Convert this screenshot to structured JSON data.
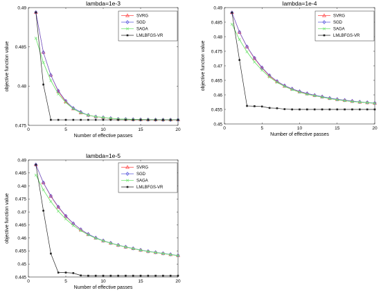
{
  "colors": {
    "SVRG": "#ff4040",
    "SGD": "#5a5adc",
    "SAGA": "#6ee36e",
    "LMLBFGS-VR": "#222222"
  },
  "chart_data": [
    {
      "type": "line",
      "title": "lambda=1e-3",
      "xlabel": "Number of effective passes",
      "ylabel": "objective function value",
      "xlim": [
        0,
        20
      ],
      "ylim": [
        0.475,
        0.49
      ],
      "xticks": [
        0,
        5,
        10,
        15,
        20
      ],
      "yticks": [
        0.475,
        0.48,
        0.485,
        0.49
      ],
      "ytick_labels": [
        "0.475",
        "0.48",
        "0.485",
        "0.49"
      ],
      "legend_position": "top-right",
      "series": [
        {
          "name": "SVRG",
          "marker": "triangle",
          "x": [
            1,
            2,
            3,
            4,
            5,
            6,
            7,
            8,
            9,
            10,
            11,
            12,
            13,
            14,
            15,
            16,
            17,
            18,
            19,
            20
          ],
          "values": [
            0.4894,
            0.4843,
            0.4814,
            0.4793,
            0.478,
            0.4771,
            0.4766,
            0.4763,
            0.4761,
            0.476,
            0.4759,
            0.4758,
            0.47578,
            0.47575,
            0.47573,
            0.47572,
            0.47571,
            0.4757,
            0.4757,
            0.4757
          ]
        },
        {
          "name": "SGD",
          "marker": "diamond",
          "x": [
            1,
            2,
            3,
            4,
            5,
            6,
            7,
            8,
            9,
            10,
            11,
            12,
            13,
            14,
            15,
            16,
            17,
            18,
            19,
            20
          ],
          "values": [
            0.4894,
            0.4843,
            0.4814,
            0.4794,
            0.4781,
            0.4772,
            0.4767,
            0.4763,
            0.4761,
            0.476,
            0.4759,
            0.4758,
            0.47578,
            0.47575,
            0.47573,
            0.47572,
            0.47571,
            0.4757,
            0.4757,
            0.4757
          ]
        },
        {
          "name": "SAGA",
          "marker": "x",
          "x": [
            1,
            2,
            3,
            4,
            5,
            6,
            7,
            8,
            9,
            10,
            11,
            12,
            13,
            14,
            15,
            16,
            17,
            18,
            19,
            20
          ],
          "values": [
            0.4861,
            0.483,
            0.4807,
            0.479,
            0.4779,
            0.4771,
            0.4766,
            0.4763,
            0.4761,
            0.476,
            0.4759,
            0.4758,
            0.47578,
            0.47575,
            0.47573,
            0.47572,
            0.47571,
            0.4757,
            0.4757,
            0.4757
          ]
        },
        {
          "name": "LMLBFGS-VR",
          "marker": "square",
          "x": [
            1,
            2,
            3,
            4,
            5,
            6,
            7,
            8,
            9,
            10,
            11,
            12,
            13,
            14,
            15,
            16,
            17,
            18,
            19,
            20
          ],
          "values": [
            0.4894,
            0.4802,
            0.4757,
            0.4757,
            0.4757,
            0.4757,
            0.4757,
            0.4757,
            0.4757,
            0.4757,
            0.4757,
            0.4757,
            0.4757,
            0.4757,
            0.4757,
            0.4757,
            0.4757,
            0.4757,
            0.4757,
            0.4757
          ]
        }
      ]
    },
    {
      "type": "line",
      "title": "lambda=1e-4",
      "xlabel": "Number of effective passes",
      "ylabel": "objective function value",
      "xlim": [
        0,
        20
      ],
      "ylim": [
        0.45,
        0.49
      ],
      "xticks": [
        0,
        5,
        10,
        15,
        20
      ],
      "yticks": [
        0.45,
        0.455,
        0.46,
        0.465,
        0.47,
        0.475,
        0.48,
        0.485,
        0.49
      ],
      "ytick_labels": [
        "0.45",
        "0.455",
        "0.46",
        "0.465",
        "0.47",
        "0.475",
        "0.48",
        "0.485",
        "0.49"
      ],
      "legend_position": "top-right",
      "series": [
        {
          "name": "SVRG",
          "marker": "triangle",
          "x": [
            1,
            2,
            3,
            4,
            5,
            6,
            7,
            8,
            9,
            10,
            11,
            12,
            13,
            14,
            15,
            16,
            17,
            18,
            19,
            20
          ],
          "values": [
            0.4883,
            0.4815,
            0.4765,
            0.4725,
            0.4692,
            0.4665,
            0.4645,
            0.463,
            0.462,
            0.4611,
            0.4604,
            0.4598,
            0.4593,
            0.4588,
            0.4584,
            0.4581,
            0.4578,
            0.4575,
            0.4573,
            0.4571
          ]
        },
        {
          "name": "SGD",
          "marker": "diamond",
          "x": [
            1,
            2,
            3,
            4,
            5,
            6,
            7,
            8,
            9,
            10,
            11,
            12,
            13,
            14,
            15,
            16,
            17,
            18,
            19,
            20
          ],
          "values": [
            0.4883,
            0.4816,
            0.4766,
            0.4727,
            0.4694,
            0.4667,
            0.4647,
            0.4632,
            0.4621,
            0.4612,
            0.4605,
            0.4599,
            0.4594,
            0.4589,
            0.4585,
            0.4582,
            0.4579,
            0.4576,
            0.4574,
            0.4572
          ]
        },
        {
          "name": "SAGA",
          "marker": "x",
          "x": [
            1,
            2,
            3,
            4,
            5,
            6,
            7,
            8,
            9,
            10,
            11,
            12,
            13,
            14,
            15,
            16,
            17,
            18,
            19,
            20
          ],
          "values": [
            0.4843,
            0.479,
            0.4748,
            0.4713,
            0.4685,
            0.4661,
            0.4643,
            0.4629,
            0.4618,
            0.4609,
            0.4602,
            0.4597,
            0.4592,
            0.4587,
            0.4583,
            0.458,
            0.4577,
            0.4575,
            0.4573,
            0.4571
          ]
        },
        {
          "name": "LMLBFGS-VR",
          "marker": "square",
          "x": [
            1,
            2,
            3,
            4,
            5,
            6,
            7,
            8,
            9,
            10,
            11,
            12,
            13,
            14,
            15,
            16,
            17,
            18,
            19,
            20
          ],
          "values": [
            0.4883,
            0.472,
            0.4562,
            0.4561,
            0.456,
            0.4555,
            0.4554,
            0.4551,
            0.455,
            0.455,
            0.455,
            0.455,
            0.455,
            0.455,
            0.455,
            0.455,
            0.455,
            0.455,
            0.455,
            0.455
          ]
        }
      ]
    },
    {
      "type": "line",
      "title": "lambda=1e-5",
      "xlabel": "Number of effective passes",
      "ylabel": "objective function value",
      "xlim": [
        0,
        20
      ],
      "ylim": [
        0.445,
        0.49
      ],
      "xticks": [
        0,
        5,
        10,
        15,
        20
      ],
      "yticks": [
        0.445,
        0.45,
        0.455,
        0.46,
        0.465,
        0.47,
        0.475,
        0.48,
        0.485,
        0.49
      ],
      "ytick_labels": [
        "0.445",
        "0.45",
        "0.455",
        "0.46",
        "0.465",
        "0.47",
        "0.475",
        "0.48",
        "0.485",
        "0.49"
      ],
      "legend_position": "top-right",
      "series": [
        {
          "name": "SVRG",
          "marker": "triangle",
          "x": [
            1,
            2,
            3,
            4,
            5,
            6,
            7,
            8,
            9,
            10,
            11,
            12,
            13,
            14,
            15,
            16,
            17,
            18,
            19,
            20
          ],
          "values": [
            0.4882,
            0.4812,
            0.476,
            0.4718,
            0.4683,
            0.4655,
            0.4632,
            0.4614,
            0.46,
            0.4589,
            0.458,
            0.4572,
            0.4565,
            0.4559,
            0.4553,
            0.4548,
            0.4544,
            0.454,
            0.4536,
            0.4532
          ]
        },
        {
          "name": "SGD",
          "marker": "diamond",
          "x": [
            1,
            2,
            3,
            4,
            5,
            6,
            7,
            8,
            9,
            10,
            11,
            12,
            13,
            14,
            15,
            16,
            17,
            18,
            19,
            20
          ],
          "values": [
            0.4882,
            0.4813,
            0.4762,
            0.472,
            0.4685,
            0.4656,
            0.4633,
            0.4615,
            0.4601,
            0.459,
            0.4581,
            0.4573,
            0.4566,
            0.456,
            0.4554,
            0.4549,
            0.4545,
            0.4541,
            0.4537,
            0.4533
          ]
        },
        {
          "name": "SAGA",
          "marker": "x",
          "x": [
            1,
            2,
            3,
            4,
            5,
            6,
            7,
            8,
            9,
            10,
            11,
            12,
            13,
            14,
            15,
            16,
            17,
            18,
            19,
            20
          ],
          "values": [
            0.4842,
            0.4785,
            0.474,
            0.4703,
            0.4673,
            0.4648,
            0.4628,
            0.4612,
            0.4599,
            0.4589,
            0.458,
            0.4572,
            0.4565,
            0.4559,
            0.4553,
            0.4548,
            0.4544,
            0.454,
            0.4536,
            0.4532
          ]
        },
        {
          "name": "LMLBFGS-VR",
          "marker": "square",
          "x": [
            1,
            2,
            3,
            4,
            5,
            6,
            7,
            8,
            9,
            10,
            11,
            12,
            13,
            14,
            15,
            16,
            17,
            18,
            19,
            20
          ],
          "values": [
            0.4882,
            0.4705,
            0.454,
            0.4467,
            0.4467,
            0.4465,
            0.4456,
            0.4455,
            0.4455,
            0.4455,
            0.4455,
            0.4455,
            0.4455,
            0.4455,
            0.4455,
            0.4455,
            0.4455,
            0.4455,
            0.4455,
            0.4455
          ]
        }
      ]
    }
  ]
}
